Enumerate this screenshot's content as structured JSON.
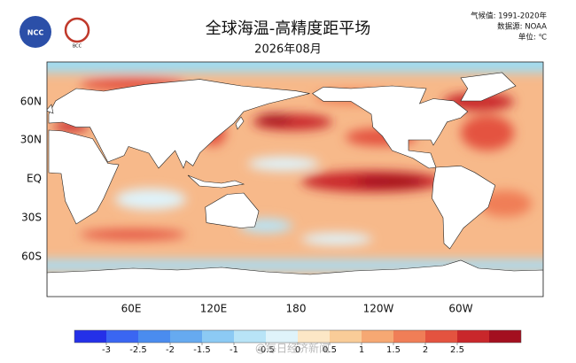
{
  "header": {
    "title": "全球海温-高精度距平场",
    "subtitle": "2026年08月",
    "notes": [
      "气候值: 1991-2020年",
      "数据源: NOAA",
      "单位: ℃"
    ],
    "logos": [
      "NCC",
      "BCC"
    ]
  },
  "map": {
    "lat_labels": [
      "60N",
      "30N",
      "EQ",
      "30S",
      "60S"
    ],
    "lon_labels": [
      "60E",
      "120E",
      "180",
      "120W",
      "60W"
    ]
  },
  "legend": {
    "ticks": [
      -3,
      -2.5,
      -2,
      -1.5,
      -1,
      -0.5,
      0,
      0.5,
      1,
      1.5,
      2,
      2.5
    ],
    "colors": [
      "#2430e8",
      "#3a66f2",
      "#4a8cef",
      "#66aaf0",
      "#8ccaf4",
      "#b8e4f7",
      "#dff3fa",
      "#fce7c6",
      "#f9cc98",
      "#f6a873",
      "#f07e57",
      "#e4533f",
      "#c9272b",
      "#a30f1f"
    ]
  },
  "watermark": "@每日经济新闻"
}
